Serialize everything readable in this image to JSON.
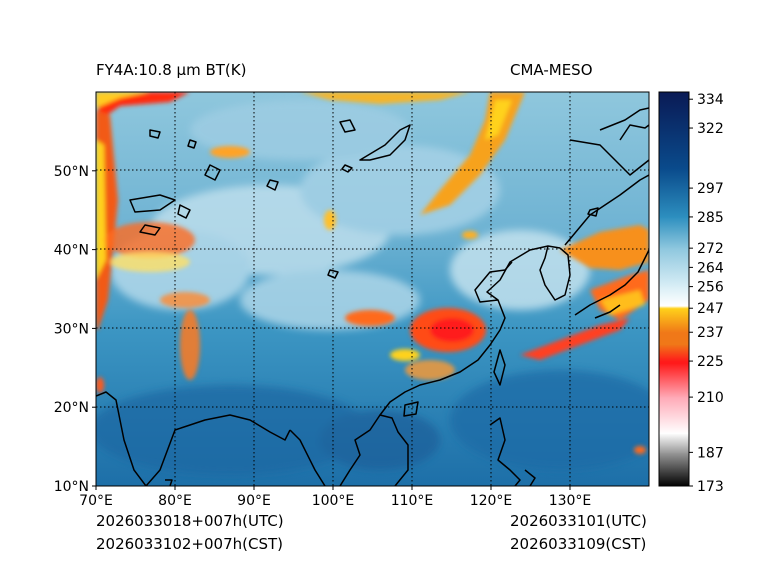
{
  "header": {
    "product_title": "FY4A:10.8 µm BT(K)",
    "model_name": "CMA-MESO"
  },
  "footer": {
    "init_utc": "2026033018+007h(UTC)",
    "init_cst": "2026033102+007h(CST)",
    "valid_utc": "2026033101(UTC)",
    "valid_cst": "2026033109(CST)"
  },
  "map": {
    "lon_range": [
      70,
      140
    ],
    "lat_range": [
      10,
      60
    ],
    "lon_ticks": [
      "70°E",
      "80°E",
      "90°E",
      "100°E",
      "110°E",
      "120°E",
      "130°E"
    ],
    "lat_ticks": [
      "10°N",
      "20°N",
      "30°N",
      "40°N",
      "50°N"
    ],
    "gridline_style": "dotted"
  },
  "colorbar": {
    "min": 173,
    "max": 337,
    "tick_labels": [
      "173",
      "187",
      "210",
      "225",
      "237",
      "247",
      "256",
      "264",
      "272",
      "285",
      "297",
      "322",
      "334"
    ],
    "tick_values": [
      173,
      187,
      210,
      225,
      237,
      247,
      256,
      264,
      272,
      285,
      297,
      322,
      334
    ],
    "colors": {
      "cold_black": "#000000",
      "gray": "#9a9a9a",
      "white": "#ffffff",
      "pink": "#ffa9b6",
      "red": "#ff1a1a",
      "orange": "#f07818",
      "yellow": "#ffd21a",
      "pale_blue": "#d9eef6",
      "light_blue": "#8ec7de",
      "mid_blue": "#2d8fbf",
      "dark_blue": "#0a4b8c",
      "navy": "#0a1a55"
    }
  }
}
